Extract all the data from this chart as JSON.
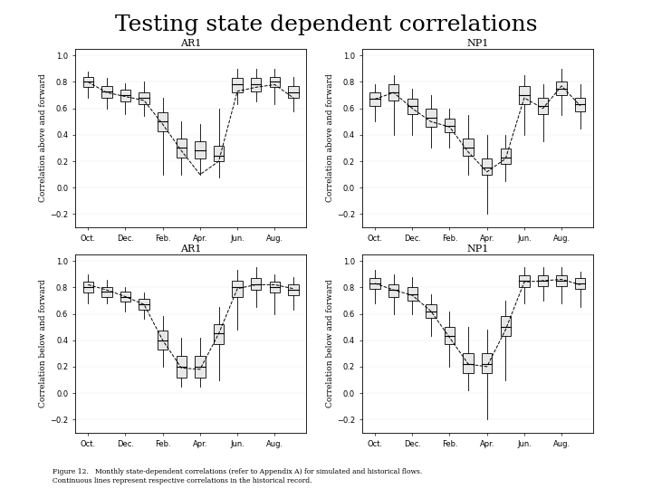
{
  "title": "Testing state dependent correlations",
  "figure_caption": "Figure 12.   Monthly state-dependent correlations (refer to Appendix A) for simulated and historical flows.\nContinuous lines represent respective correlations in the historical record.",
  "subplots": [
    {
      "title": "AR1",
      "ylabel": "Correlation above and forward",
      "ylim": [
        -0.3,
        1.05
      ],
      "yticks": [
        -0.2,
        0.0,
        0.2,
        0.4,
        0.6,
        0.8,
        1.0
      ],
      "xtick_labels": [
        "Oct.",
        "Dec.",
        "Feb.",
        "Apr.",
        "Jun.",
        "Aug."
      ],
      "xtick_pos": [
        0,
        2,
        4,
        6,
        8,
        10
      ],
      "medians": [
        0.8,
        0.73,
        0.7,
        0.68,
        0.5,
        0.3,
        0.28,
        0.24,
        0.78,
        0.78,
        0.8,
        0.72
      ],
      "q1": [
        0.76,
        0.68,
        0.65,
        0.63,
        0.43,
        0.23,
        0.22,
        0.2,
        0.72,
        0.73,
        0.76,
        0.68
      ],
      "q3": [
        0.84,
        0.77,
        0.74,
        0.72,
        0.57,
        0.37,
        0.35,
        0.32,
        0.83,
        0.83,
        0.84,
        0.77
      ],
      "whislo": [
        0.68,
        0.6,
        0.56,
        0.54,
        0.1,
        0.1,
        0.1,
        0.08,
        0.63,
        0.65,
        0.63,
        0.58
      ],
      "whishi": [
        0.88,
        0.83,
        0.79,
        0.8,
        0.68,
        0.5,
        0.48,
        0.6,
        0.9,
        0.9,
        0.9,
        0.84
      ],
      "line": [
        0.8,
        0.72,
        0.69,
        0.66,
        0.48,
        0.28,
        0.1,
        0.2,
        0.73,
        0.76,
        0.78,
        0.68
      ]
    },
    {
      "title": "NP1",
      "ylabel": "Correlation above and forward",
      "ylim": [
        -0.3,
        1.05
      ],
      "yticks": [
        -0.2,
        0.0,
        0.2,
        0.4,
        0.6,
        0.8,
        1.0
      ],
      "xtick_labels": [
        "Oct.",
        "Dec.",
        "Feb.",
        "Apr.",
        "Jun.",
        "Aug."
      ],
      "xtick_pos": [
        0,
        2,
        4,
        6,
        8,
        10
      ],
      "medians": [
        0.67,
        0.72,
        0.62,
        0.53,
        0.47,
        0.3,
        0.15,
        0.23,
        0.7,
        0.62,
        0.75,
        0.63
      ],
      "q1": [
        0.62,
        0.66,
        0.56,
        0.46,
        0.42,
        0.24,
        0.1,
        0.18,
        0.63,
        0.56,
        0.7,
        0.58
      ],
      "q3": [
        0.72,
        0.78,
        0.67,
        0.6,
        0.52,
        0.37,
        0.22,
        0.3,
        0.77,
        0.68,
        0.8,
        0.68
      ],
      "whislo": [
        0.5,
        0.4,
        0.4,
        0.3,
        0.3,
        0.1,
        -0.2,
        0.05,
        0.4,
        0.35,
        0.55,
        0.45
      ],
      "whishi": [
        0.78,
        0.85,
        0.75,
        0.7,
        0.6,
        0.55,
        0.4,
        0.4,
        0.85,
        0.78,
        0.9,
        0.78
      ],
      "line": [
        0.67,
        0.72,
        0.6,
        0.5,
        0.46,
        0.27,
        0.12,
        0.22,
        0.68,
        0.6,
        0.77,
        0.62
      ]
    },
    {
      "title": "AR1",
      "ylabel": "Correlation below and forward",
      "ylim": [
        -0.3,
        1.05
      ],
      "yticks": [
        -0.2,
        0.0,
        0.2,
        0.4,
        0.6,
        0.8,
        1.0
      ],
      "xtick_labels": [
        "Oct.",
        "Dec.",
        "Feb.",
        "Apr.",
        "Jun.",
        "Aug."
      ],
      "xtick_pos": [
        0,
        2,
        4,
        6,
        8,
        10
      ],
      "medians": [
        0.8,
        0.77,
        0.73,
        0.67,
        0.4,
        0.2,
        0.2,
        0.45,
        0.8,
        0.82,
        0.8,
        0.78
      ],
      "q1": [
        0.76,
        0.73,
        0.69,
        0.63,
        0.33,
        0.12,
        0.12,
        0.37,
        0.73,
        0.78,
        0.76,
        0.74
      ],
      "q3": [
        0.84,
        0.8,
        0.77,
        0.71,
        0.47,
        0.28,
        0.28,
        0.52,
        0.85,
        0.87,
        0.84,
        0.82
      ],
      "whislo": [
        0.68,
        0.68,
        0.62,
        0.56,
        0.2,
        0.05,
        0.05,
        0.1,
        0.48,
        0.65,
        0.6,
        0.63
      ],
      "whishi": [
        0.9,
        0.86,
        0.8,
        0.76,
        0.58,
        0.42,
        0.42,
        0.65,
        0.93,
        0.95,
        0.9,
        0.88
      ],
      "line": [
        0.82,
        0.78,
        0.73,
        0.67,
        0.4,
        0.19,
        0.18,
        0.45,
        0.79,
        0.82,
        0.82,
        0.79
      ]
    },
    {
      "title": "NP1",
      "ylabel": "Correlation below and forward",
      "ylim": [
        -0.3,
        1.05
      ],
      "yticks": [
        -0.2,
        0.0,
        0.2,
        0.4,
        0.6,
        0.8,
        1.0
      ],
      "xtick_labels": [
        "Oct.",
        "Dec.",
        "Feb.",
        "Apr.",
        "Jun.",
        "Aug."
      ],
      "xtick_pos": [
        0,
        2,
        4,
        6,
        8,
        10
      ],
      "medians": [
        0.83,
        0.78,
        0.75,
        0.62,
        0.43,
        0.22,
        0.22,
        0.5,
        0.85,
        0.85,
        0.85,
        0.83
      ],
      "q1": [
        0.79,
        0.73,
        0.7,
        0.57,
        0.37,
        0.15,
        0.15,
        0.43,
        0.8,
        0.81,
        0.81,
        0.79
      ],
      "q3": [
        0.87,
        0.82,
        0.8,
        0.67,
        0.5,
        0.3,
        0.3,
        0.58,
        0.89,
        0.89,
        0.89,
        0.87
      ],
      "whislo": [
        0.68,
        0.6,
        0.6,
        0.43,
        0.2,
        0.02,
        -0.2,
        0.1,
        0.68,
        0.7,
        0.68,
        0.65
      ],
      "whishi": [
        0.93,
        0.9,
        0.88,
        0.75,
        0.62,
        0.5,
        0.48,
        0.7,
        0.95,
        0.95,
        0.95,
        0.92
      ],
      "line": [
        0.83,
        0.78,
        0.74,
        0.62,
        0.42,
        0.22,
        0.2,
        0.48,
        0.84,
        0.85,
        0.86,
        0.82
      ]
    }
  ],
  "background_color": "#ffffff",
  "box_facecolor": "#e8e8e8",
  "line_color": "#333333",
  "title_fontsize": 18,
  "label_fontsize": 6.5,
  "tick_fontsize": 6,
  "subplot_title_fontsize": 8,
  "caption_fontsize": 5.5
}
